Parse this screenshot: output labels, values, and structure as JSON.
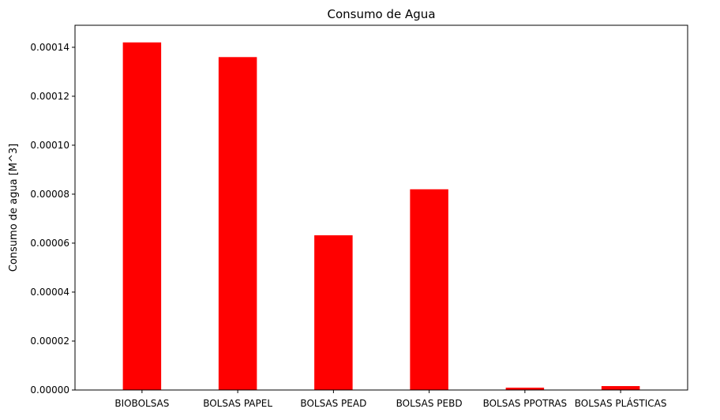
{
  "chart_data": {
    "type": "bar",
    "title": "Consumo de Agua",
    "xlabel": "",
    "ylabel": "Consumo de agua [M^3]",
    "categories": [
      "BIOBOLSAS",
      "BOLSAS PAPEL",
      "BOLSAS PEAD",
      "BOLSAS PEBD",
      "BOLSAS PPOTRAS",
      "BOLSAS PLÁSTICAS"
    ],
    "values": [
      0.000142,
      0.000136,
      6.32e-05,
      8.2e-05,
      9.5e-07,
      1.6e-06
    ],
    "ylim": [
      0,
      0.000149
    ],
    "yticks": [
      0,
      2e-05,
      4e-05,
      6e-05,
      8e-05,
      0.0001,
      0.00012,
      0.00014
    ],
    "ytick_labels": [
      "0.00000",
      "0.00002",
      "0.00004",
      "0.00006",
      "0.00008",
      "0.00010",
      "0.00012",
      "0.00014"
    ],
    "bar_color": "#ff0000",
    "grid": false,
    "legend": "none"
  }
}
